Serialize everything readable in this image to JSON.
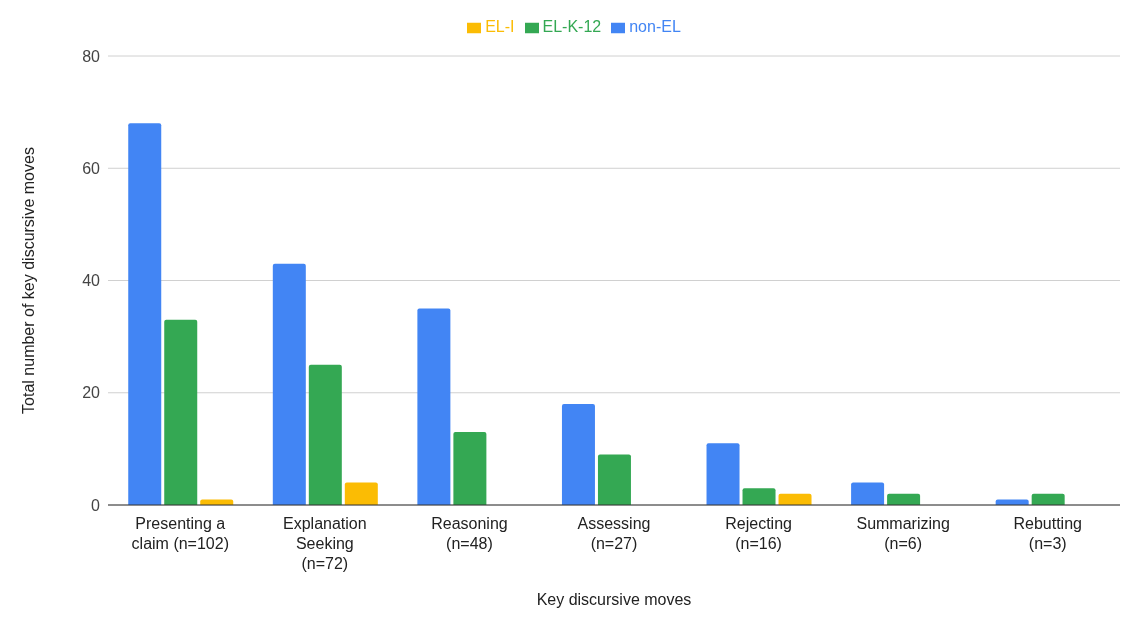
{
  "chart_data": {
    "type": "bar",
    "xlabel": "Key discursive moves",
    "ylabel": "Total number of key discursive moves",
    "categories": [
      "Presenting a claim (n=102)",
      "Explanation Seeking (n=72)",
      "Reasoning (n=48)",
      "Assessing (n=27)",
      "Rejecting (n=16)",
      "Summarizing (n=6)",
      "Rebutting (n=3)"
    ],
    "series": [
      {
        "name": "non-EL",
        "color": "#4285f4",
        "values": [
          68,
          43,
          35,
          18,
          11,
          4,
          1
        ]
      },
      {
        "name": "EL-K-12",
        "color": "#34a853",
        "values": [
          33,
          25,
          13,
          9,
          3,
          2,
          2
        ]
      },
      {
        "name": "EL-I",
        "color": "#fbbc04",
        "values": [
          1,
          4,
          null,
          null,
          2,
          null,
          null
        ]
      }
    ],
    "ylim": [
      0,
      80
    ],
    "yticks": [
      0,
      20,
      40,
      60,
      80
    ],
    "grid": "y",
    "legend": "top"
  }
}
